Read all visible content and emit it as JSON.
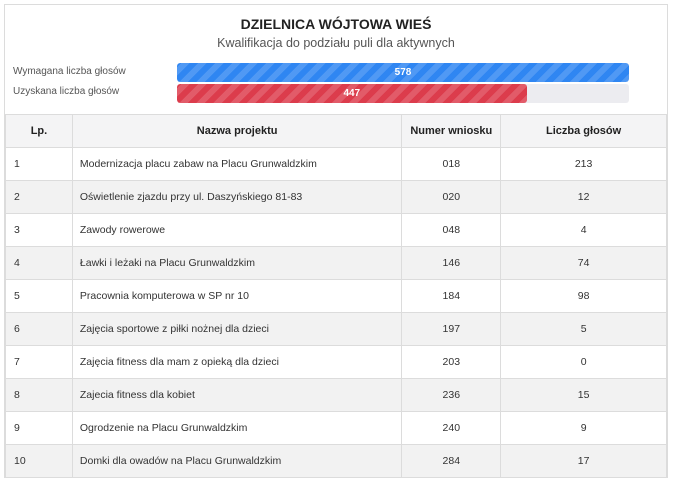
{
  "header": {
    "title": "DZIELNICA WÓJTOWA WIEŚ",
    "subtitle": "Kwalifikacja do podziału puli dla aktywnych"
  },
  "bars": {
    "required_label": "Wymagana liczba głosów",
    "required_value": "578",
    "required_fraction": 1.0,
    "obtained_label": "Uzyskana liczba głosów",
    "obtained_value": "447",
    "obtained_fraction": 0.7734,
    "required_color": "#2f86f2",
    "obtained_color": "#dc3c4c"
  },
  "table": {
    "headers": {
      "lp": "Lp.",
      "name": "Nazwa projektu",
      "number": "Numer wniosku",
      "votes": "Liczba głosów"
    },
    "rows": [
      {
        "lp": "1",
        "name": "Modernizacja placu zabaw na Placu Grunwaldzkim",
        "number": "018",
        "votes": "213"
      },
      {
        "lp": "2",
        "name": "Oświetlenie zjazdu przy ul. Daszyńskiego 81-83",
        "number": "020",
        "votes": "12"
      },
      {
        "lp": "3",
        "name": "Zawody rowerowe",
        "number": "048",
        "votes": "4"
      },
      {
        "lp": "4",
        "name": "Ławki i leżaki na Placu Grunwaldzkim",
        "number": "146",
        "votes": "74"
      },
      {
        "lp": "5",
        "name": "Pracownia komputerowa w SP nr 10",
        "number": "184",
        "votes": "98"
      },
      {
        "lp": "6",
        "name": "Zajęcia sportowe z piłki nożnej dla dzieci",
        "number": "197",
        "votes": "5"
      },
      {
        "lp": "7",
        "name": "Zajęcia fitness dla mam z opieką dla dzieci",
        "number": "203",
        "votes": "0"
      },
      {
        "lp": "8",
        "name": "Zajecia fitness dla kobiet",
        "number": "236",
        "votes": "15"
      },
      {
        "lp": "9",
        "name": "Ogrodzenie na Placu Grunwaldzkim",
        "number": "240",
        "votes": "9"
      },
      {
        "lp": "10",
        "name": "Domki dla owadów na Placu Grunwaldzkim",
        "number": "284",
        "votes": "17"
      }
    ]
  }
}
